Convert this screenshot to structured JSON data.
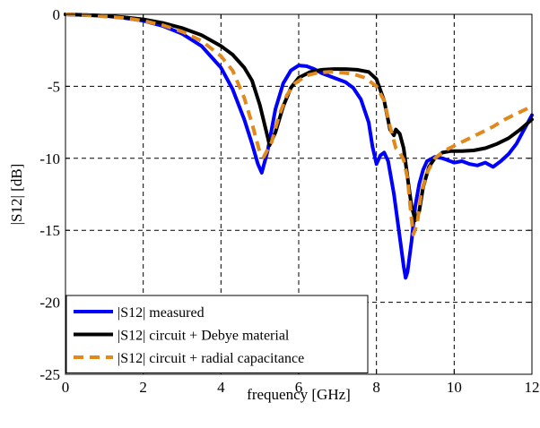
{
  "chart_data": {
    "type": "line",
    "title": "",
    "xlabel": "frequency [GHz]",
    "ylabel": "|S12| [dB]",
    "xlim": [
      0,
      12
    ],
    "ylim": [
      -25,
      0
    ],
    "xticks": [
      0,
      2,
      4,
      6,
      8,
      10,
      12
    ],
    "yticks": [
      0,
      -5,
      -10,
      -15,
      -20,
      -25
    ],
    "grid": true,
    "legend_position": "bottom-left",
    "series": [
      {
        "name": "|S12| measured",
        "color": "#0000ff",
        "style": "solid",
        "x": [
          0,
          0.5,
          1,
          1.5,
          2,
          2.5,
          3,
          3.5,
          4,
          4.3,
          4.6,
          4.8,
          4.95,
          5.05,
          5.2,
          5.4,
          5.6,
          5.8,
          6.0,
          6.2,
          6.4,
          6.6,
          6.8,
          7.0,
          7.2,
          7.4,
          7.6,
          7.8,
          7.9,
          8.0,
          8.1,
          8.2,
          8.3,
          8.45,
          8.6,
          8.7,
          8.75,
          8.8,
          8.9,
          9.0,
          9.1,
          9.2,
          9.3,
          9.5,
          9.7,
          9.9,
          10.0,
          10.2,
          10.4,
          10.6,
          10.8,
          11.0,
          11.2,
          11.4,
          11.6,
          11.8,
          12.0
        ],
        "y": [
          0,
          -0.05,
          -0.1,
          -0.25,
          -0.45,
          -0.8,
          -1.35,
          -2.2,
          -3.7,
          -5.2,
          -7.3,
          -9.0,
          -10.4,
          -11.0,
          -9.5,
          -6.6,
          -4.8,
          -3.9,
          -3.55,
          -3.6,
          -3.8,
          -4.1,
          -4.3,
          -4.5,
          -4.7,
          -5.1,
          -5.9,
          -7.5,
          -9.2,
          -10.4,
          -9.8,
          -9.6,
          -10.2,
          -12.5,
          -15.5,
          -17.5,
          -18.3,
          -17.9,
          -15.8,
          -13.3,
          -11.8,
          -10.8,
          -10.2,
          -9.9,
          -10.0,
          -10.2,
          -10.3,
          -10.2,
          -10.4,
          -10.5,
          -10.3,
          -10.6,
          -10.2,
          -9.7,
          -9.0,
          -8.0,
          -7.0
        ]
      },
      {
        "name": "|S12| circuit + Debye material",
        "color": "#000000",
        "style": "solid",
        "x": [
          0,
          0.5,
          1,
          1.5,
          2,
          2.5,
          3,
          3.5,
          4,
          4.3,
          4.6,
          4.8,
          5.0,
          5.2,
          5.25,
          5.4,
          5.6,
          5.8,
          6.0,
          6.3,
          6.6,
          6.9,
          7.2,
          7.5,
          7.8,
          8.0,
          8.2,
          8.35,
          8.45,
          8.5,
          8.6,
          8.7,
          8.8,
          8.9,
          9.0,
          9.1,
          9.2,
          9.35,
          9.5,
          9.7,
          9.9,
          10.2,
          10.5,
          10.8,
          11.1,
          11.4,
          11.7,
          12.0
        ],
        "y": [
          0,
          -0.05,
          -0.1,
          -0.2,
          -0.35,
          -0.6,
          -0.95,
          -1.45,
          -2.2,
          -2.8,
          -3.7,
          -4.6,
          -6.3,
          -8.5,
          -9.1,
          -8.2,
          -6.4,
          -5.1,
          -4.4,
          -4.0,
          -3.85,
          -3.8,
          -3.8,
          -3.85,
          -4.0,
          -4.5,
          -6.0,
          -8.0,
          -8.4,
          -8.0,
          -8.3,
          -9.3,
          -11.3,
          -13.3,
          -14.3,
          -13.7,
          -12.0,
          -10.6,
          -10.0,
          -9.6,
          -9.5,
          -9.5,
          -9.45,
          -9.3,
          -9.0,
          -8.6,
          -8.0,
          -7.3
        ]
      },
      {
        "name": "|S12| circuit + radial capacitance",
        "color": "#e08a1e",
        "style": "dashed",
        "x": [
          0,
          0.5,
          1,
          1.5,
          2,
          2.5,
          3,
          3.5,
          4,
          4.3,
          4.6,
          4.8,
          5.0,
          5.1,
          5.3,
          5.5,
          5.7,
          5.9,
          6.2,
          6.5,
          6.8,
          7.1,
          7.4,
          7.7,
          8.0,
          8.2,
          8.35,
          8.5,
          8.6,
          8.7,
          8.8,
          8.9,
          8.95,
          9.05,
          9.15,
          9.3,
          9.5,
          9.8,
          10.1,
          10.4,
          10.7,
          11.0,
          11.3,
          11.6,
          12.0
        ],
        "y": [
          0,
          -0.05,
          -0.15,
          -0.25,
          -0.45,
          -0.75,
          -1.2,
          -1.85,
          -2.9,
          -3.9,
          -5.8,
          -7.6,
          -9.6,
          -9.9,
          -8.9,
          -7.0,
          -5.6,
          -4.8,
          -4.25,
          -4.05,
          -4.0,
          -4.05,
          -4.15,
          -4.4,
          -5.0,
          -6.0,
          -7.8,
          -9.3,
          -9.6,
          -10.1,
          -11.4,
          -14.2,
          -15.3,
          -14.5,
          -12.4,
          -11.0,
          -10.0,
          -9.4,
          -9.0,
          -8.6,
          -8.2,
          -7.8,
          -7.3,
          -6.9,
          -6.4
        ]
      }
    ]
  }
}
